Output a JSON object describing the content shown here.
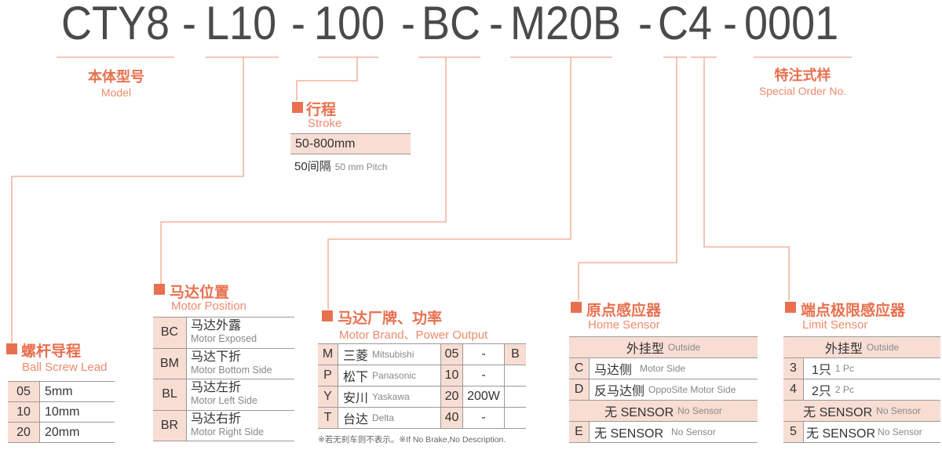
{
  "model_code": {
    "segments": [
      "CTY8",
      "L10",
      "100",
      "BC",
      "M20B",
      "C4",
      "0001"
    ],
    "separator": "-"
  },
  "model": {
    "cn": "本体型号",
    "en": "Model"
  },
  "special": {
    "cn": "特注式样",
    "en": "Special Order No."
  },
  "stroke": {
    "cn": "行程",
    "en": "Stroke",
    "range": "50-800mm",
    "pitch_cn": "50间隔",
    "pitch_en": "50 mm Pitch"
  },
  "lead": {
    "cn": "螺杆导程",
    "en": "Ball Screw Lead",
    "rows": [
      {
        "code": "05",
        "value": "5mm"
      },
      {
        "code": "10",
        "value": "10mm"
      },
      {
        "code": "20",
        "value": "20mm"
      }
    ]
  },
  "motor_position": {
    "cn": "马达位置",
    "en": "Motor Position",
    "rows": [
      {
        "code": "BC",
        "cn": "马达外露",
        "en": "Motor Exposed"
      },
      {
        "code": "BM",
        "cn": "马达下折",
        "en": "Motor Bottom Side"
      },
      {
        "code": "BL",
        "cn": "马达左折",
        "en": "Motor Left Side"
      },
      {
        "code": "BR",
        "cn": "马达右折",
        "en": "Motor Right Side"
      }
    ]
  },
  "motor_brand": {
    "cn": "马达厂牌、功率",
    "en": "Motor Brand、Power Output",
    "rows": [
      {
        "code": "M",
        "cn": "三菱",
        "en": "Mitsubishi",
        "pcode": "05",
        "power": "-"
      },
      {
        "code": "P",
        "cn": "松下",
        "en": "Panasonic",
        "pcode": "10",
        "power": "-"
      },
      {
        "code": "Y",
        "cn": "安川",
        "en": "Yaskawa",
        "pcode": "20",
        "power": "200W"
      },
      {
        "code": "T",
        "cn": "台达",
        "en": "Delta",
        "pcode": "40",
        "power": "-"
      }
    ],
    "brake": "B",
    "note": "※若无刹车则不表示。※If No Brake,No Description."
  },
  "home_sensor": {
    "cn": "原点感应器",
    "en": "Home Sensor",
    "outside_cn": "外挂型",
    "outside_en": "Outside",
    "rows": [
      {
        "code": "C",
        "cn": "马达侧",
        "en": "Motor Side"
      },
      {
        "code": "D",
        "cn": "反马达侧",
        "en": "OppoSite Motor Side"
      }
    ],
    "none_cn": "无 SENSOR",
    "none_en": "No Sensor",
    "none_row": {
      "code": "E",
      "cn": "无 SENSOR",
      "en": "No Sensor"
    }
  },
  "limit_sensor": {
    "cn": "端点极限感应器",
    "en": "Limit Sensor",
    "outside_cn": "外挂型",
    "outside_en": "Outside",
    "rows": [
      {
        "code": "3",
        "cn": "1只",
        "en": "1 Pc"
      },
      {
        "code": "4",
        "cn": "2只",
        "en": "2 Pc"
      }
    ],
    "none_cn": "无 SENSOR",
    "none_en": "No Sensor",
    "none_row": {
      "code": "5",
      "cn": "无 SENSOR",
      "en": "No Sensor"
    }
  },
  "colors": {
    "accent": "#e8704e",
    "subtitle": "#ee8a6c",
    "line": "#f0a58a",
    "cell_bg": "#f8ddd3",
    "code_text": "#4a4a4a"
  }
}
